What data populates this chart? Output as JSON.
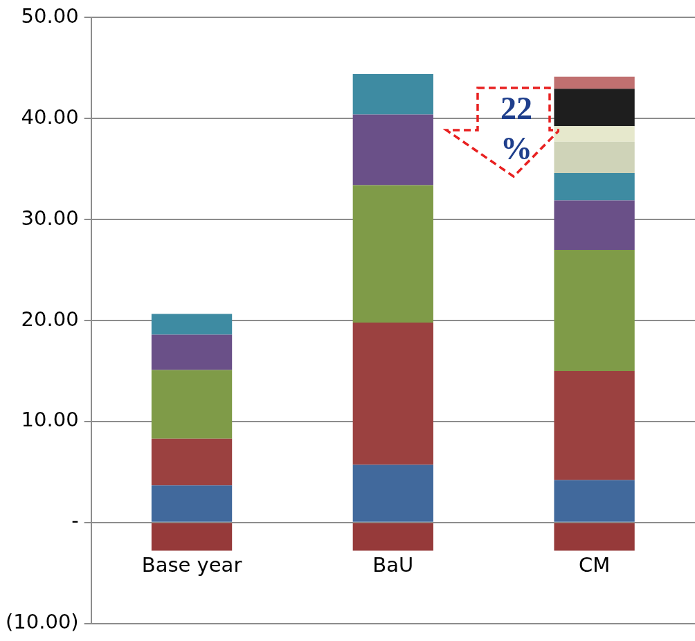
{
  "chart_data": {
    "type": "bar",
    "stacked": true,
    "categories": [
      "Base year",
      "BaU",
      "CM"
    ],
    "series": [
      {
        "color": "#963a3a",
        "values": [
          -2.8,
          -2.8,
          -2.8
        ]
      },
      {
        "color": "#41699c",
        "values": [
          3.67,
          5.7,
          4.2
        ]
      },
      {
        "color": "#9b4140",
        "values": [
          4.63,
          14.1,
          10.8
        ]
      },
      {
        "color": "#7f9b48",
        "values": [
          6.8,
          13.6,
          12.0
        ]
      },
      {
        "color": "#6a5088",
        "values": [
          3.5,
          7.0,
          4.9
        ]
      },
      {
        "color": "#3e8ba2",
        "values": [
          2.05,
          4.0,
          2.7
        ]
      },
      {
        "color": "#cfd3b8",
        "values": [
          null,
          null,
          3.1
        ]
      },
      {
        "color": "#e6e8cc",
        "values": [
          null,
          null,
          1.55
        ]
      },
      {
        "color": "#1e1e1e",
        "values": [
          null,
          null,
          3.7
        ]
      },
      {
        "color": "#c07070",
        "values": [
          null,
          null,
          1.2
        ]
      }
    ],
    "ylim": [
      -10,
      50
    ],
    "yticks": [
      {
        "value": -10,
        "label": "(10.00)"
      },
      {
        "value": 0,
        "label": "-"
      },
      {
        "value": 10,
        "label": "10.00"
      },
      {
        "value": 20,
        "label": "20.00"
      },
      {
        "value": 30,
        "label": "30.00"
      },
      {
        "value": 40,
        "label": "40.00"
      },
      {
        "value": 50,
        "label": "50.00"
      }
    ],
    "grid": "y",
    "legend": false,
    "annotations": [
      "22 %"
    ]
  }
}
